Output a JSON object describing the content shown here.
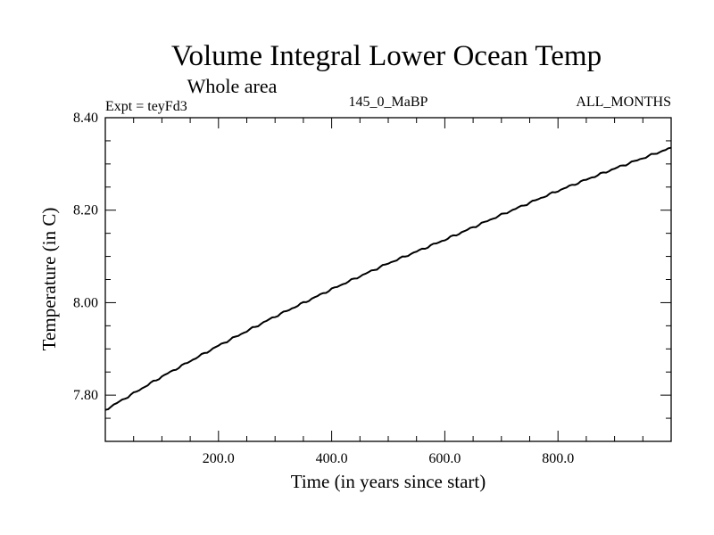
{
  "chart_data": {
    "type": "line",
    "title": "Volume Integral Lower Ocean Temp",
    "subtitle": "Whole area",
    "annotations": {
      "left": "Expt = teyFd3",
      "center": "145_0_MaBP",
      "right": "ALL_MONTHS"
    },
    "xlabel": "Time (in years since start)",
    "ylabel": "Temperature (in C)",
    "xlim": [
      0,
      1000
    ],
    "ylim": [
      7.7,
      8.4
    ],
    "xticks": [
      200,
      400,
      600,
      800
    ],
    "xtick_labels": [
      "200.0",
      "400.0",
      "600.0",
      "800.0"
    ],
    "yticks": [
      7.8,
      8.0,
      8.2,
      8.4
    ],
    "ytick_labels": [
      "7.80",
      "8.00",
      "8.20",
      "8.40"
    ],
    "grid": false,
    "series": [
      {
        "name": "Temperature",
        "color": "#000000",
        "x": [
          0,
          100,
          200,
          300,
          400,
          500,
          600,
          700,
          800,
          900,
          1000
        ],
        "y": [
          7.768,
          7.84,
          7.907,
          7.97,
          8.029,
          8.085,
          8.136,
          8.19,
          8.242,
          8.29,
          8.335
        ]
      }
    ]
  }
}
